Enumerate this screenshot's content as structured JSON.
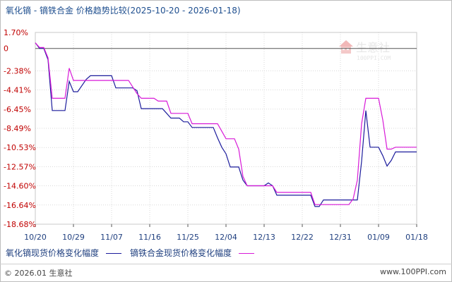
{
  "header": {
    "title": "氧化镝 - 镝铁合金  价格趋势比较",
    "date_range": "(2025-10-20 - 2026-01-18)"
  },
  "watermark": {
    "name": "生意社",
    "url": "100PPI.COM",
    "logo_icon": "house-logo-icon"
  },
  "footer": {
    "copyright": "© 2026.01 生意社",
    "site": "www.100PPI.com"
  },
  "colors": {
    "series_a": "#1c1c9c",
    "series_b": "#d81ad8",
    "axis": "#555555",
    "grid": "#d9d9d9",
    "tick_text": "#c00000",
    "x_tick_text": "#1f3f7f"
  },
  "chart_data": {
    "type": "line",
    "title": "氧化镝 - 镝铁合金  价格趋势比较",
    "xlabel": "",
    "ylabel": "",
    "ylim": [
      -18.68,
      1.7
    ],
    "yticks": [
      1.7,
      0,
      -2.38,
      -4.41,
      -6.45,
      -8.49,
      -10.53,
      -12.57,
      -14.6,
      -16.64,
      -18.68
    ],
    "ytick_labels": [
      "1.70%",
      "0",
      "-2.38%",
      "-4.41%",
      "-6.45%",
      "-8.49%",
      "-10.53%",
      "-12.57%",
      "-14.60%",
      "-16.64%",
      "-18.68%"
    ],
    "x_start": "2025-10-20",
    "x_end": "2026-01-18",
    "xticks": [
      "10/20",
      "10/29",
      "11/07",
      "11/16",
      "11/25",
      "12/04",
      "12/13",
      "12/22",
      "12/31",
      "01/09",
      "01/18"
    ],
    "grid": true,
    "legend_position": "bottom-left",
    "series": [
      {
        "name": "氧化镝现货价格变化幅度",
        "color": "#1c1c9c",
        "points": [
          [
            "2025-10-20",
            0.6
          ],
          [
            "2025-10-21",
            0.0
          ],
          [
            "2025-10-22",
            0.0
          ],
          [
            "2025-10-23",
            -1.2
          ],
          [
            "2025-10-24",
            -6.6
          ],
          [
            "2025-10-26",
            -6.6
          ],
          [
            "2025-10-27",
            -6.6
          ],
          [
            "2025-10-28",
            -3.5
          ],
          [
            "2025-10-29",
            -4.6
          ],
          [
            "2025-10-30",
            -4.6
          ],
          [
            "2025-11-01",
            -3.3
          ],
          [
            "2025-11-02",
            -2.9
          ],
          [
            "2025-11-03",
            -2.9
          ],
          [
            "2025-11-06",
            -2.9
          ],
          [
            "2025-11-07",
            -2.9
          ],
          [
            "2025-11-08",
            -4.2
          ],
          [
            "2025-11-11",
            -4.2
          ],
          [
            "2025-11-12",
            -4.2
          ],
          [
            "2025-11-13",
            -4.5
          ],
          [
            "2025-11-14",
            -6.4
          ],
          [
            "2025-11-16",
            -6.4
          ],
          [
            "2025-11-19",
            -6.4
          ],
          [
            "2025-11-20",
            -6.9
          ],
          [
            "2025-11-21",
            -7.4
          ],
          [
            "2025-11-23",
            -7.4
          ],
          [
            "2025-11-24",
            -7.8
          ],
          [
            "2025-11-25",
            -7.8
          ],
          [
            "2025-11-26",
            -8.4
          ],
          [
            "2025-11-30",
            -8.4
          ],
          [
            "2025-12-01",
            -8.4
          ],
          [
            "2025-12-02",
            -9.5
          ],
          [
            "2025-12-03",
            -10.5
          ],
          [
            "2025-12-04",
            -11.2
          ],
          [
            "2025-12-05",
            -12.6
          ],
          [
            "2025-12-06",
            -12.6
          ],
          [
            "2025-12-07",
            -12.6
          ],
          [
            "2025-12-08",
            -14.0
          ],
          [
            "2025-12-09",
            -14.6
          ],
          [
            "2025-12-13",
            -14.6
          ],
          [
            "2025-12-14",
            -14.3
          ],
          [
            "2025-12-15",
            -14.6
          ],
          [
            "2025-12-16",
            -15.6
          ],
          [
            "2025-12-24",
            -15.6
          ],
          [
            "2025-12-25",
            -16.8
          ],
          [
            "2025-12-26",
            -16.8
          ],
          [
            "2025-12-27",
            -16.1
          ],
          [
            "2025-12-30",
            -16.1
          ],
          [
            "2026-01-03",
            -16.1
          ],
          [
            "2026-01-04",
            -16.1
          ],
          [
            "2026-01-05",
            -12.0
          ],
          [
            "2026-01-06",
            -6.6
          ],
          [
            "2026-01-07",
            -10.5
          ],
          [
            "2026-01-08",
            -10.5
          ],
          [
            "2026-01-09",
            -10.5
          ],
          [
            "2026-01-10",
            -11.4
          ],
          [
            "2026-01-11",
            -12.5
          ],
          [
            "2026-01-12",
            -11.9
          ],
          [
            "2026-01-13",
            -11.0
          ],
          [
            "2026-01-14",
            -11.0
          ],
          [
            "2026-01-16",
            -11.0
          ],
          [
            "2026-01-18",
            -11.0
          ]
        ]
      },
      {
        "name": "镝铁合金现货价格变化幅度",
        "color": "#d81ad8",
        "points": [
          [
            "2025-10-20",
            0.6
          ],
          [
            "2025-10-21",
            0.1
          ],
          [
            "2025-10-22",
            0.1
          ],
          [
            "2025-10-23",
            -1.0
          ],
          [
            "2025-10-24",
            -5.3
          ],
          [
            "2025-10-26",
            -5.3
          ],
          [
            "2025-10-27",
            -5.3
          ],
          [
            "2025-10-28",
            -2.1
          ],
          [
            "2025-10-29",
            -3.4
          ],
          [
            "2025-10-30",
            -3.4
          ],
          [
            "2025-11-01",
            -3.4
          ],
          [
            "2025-11-06",
            -3.4
          ],
          [
            "2025-11-07",
            -3.4
          ],
          [
            "2025-11-10",
            -3.4
          ],
          [
            "2025-11-11",
            -3.4
          ],
          [
            "2025-11-12",
            -4.1
          ],
          [
            "2025-11-13",
            -4.8
          ],
          [
            "2025-11-14",
            -5.3
          ],
          [
            "2025-11-16",
            -5.3
          ],
          [
            "2025-11-17",
            -5.3
          ],
          [
            "2025-11-18",
            -5.6
          ],
          [
            "2025-11-20",
            -5.6
          ],
          [
            "2025-11-21",
            -6.9
          ],
          [
            "2025-11-25",
            -6.9
          ],
          [
            "2025-11-26",
            -8.0
          ],
          [
            "2025-12-02",
            -8.0
          ],
          [
            "2025-12-03",
            -8.8
          ],
          [
            "2025-12-04",
            -9.6
          ],
          [
            "2025-12-06",
            -9.6
          ],
          [
            "2025-12-07",
            -10.7
          ],
          [
            "2025-12-08",
            -13.6
          ],
          [
            "2025-12-09",
            -14.6
          ],
          [
            "2025-12-15",
            -14.6
          ],
          [
            "2025-12-16",
            -15.3
          ],
          [
            "2025-12-24",
            -15.3
          ],
          [
            "2025-12-25",
            -16.6
          ],
          [
            "2026-01-01",
            -16.6
          ],
          [
            "2026-01-02",
            -16.6
          ],
          [
            "2026-01-03",
            -16.0
          ],
          [
            "2026-01-04",
            -14.0
          ],
          [
            "2026-01-05",
            -8.0
          ],
          [
            "2026-01-06",
            -5.3
          ],
          [
            "2026-01-07",
            -5.3
          ],
          [
            "2026-01-08",
            -5.3
          ],
          [
            "2026-01-09",
            -5.3
          ],
          [
            "2026-01-10",
            -7.6
          ],
          [
            "2026-01-11",
            -10.7
          ],
          [
            "2026-01-12",
            -10.7
          ],
          [
            "2026-01-13",
            -10.5
          ],
          [
            "2026-01-16",
            -10.5
          ],
          [
            "2026-01-18",
            -10.5
          ]
        ]
      }
    ]
  }
}
